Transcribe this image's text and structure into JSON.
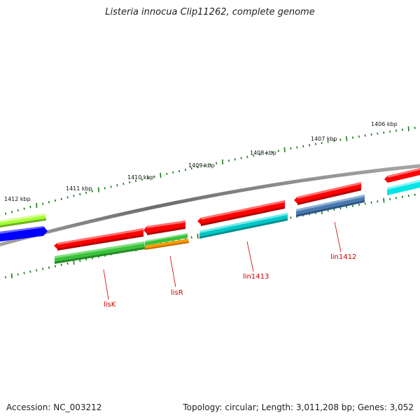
{
  "title": "Listeria innocua Clip11262, complete genome",
  "footer": {
    "accession": "Accession: NC_003212",
    "summary": "Topology: circular; Length: 3,011,208 bp; Genes: 3,052"
  },
  "map": {
    "ruler_color": "#1a7a1a",
    "backbone_color": "#808080",
    "ticks": [
      {
        "label": "1412 kbp"
      },
      {
        "label": "1411 kbp"
      },
      {
        "label": "1410 kbp"
      },
      {
        "label": "1409 kbp"
      },
      {
        "label": "1408 kbp"
      },
      {
        "label": "1407 kbp"
      },
      {
        "label": "1406 kbp"
      }
    ],
    "gene_labels": [
      {
        "label": "lisK"
      },
      {
        "label": "lisR"
      },
      {
        "label": "lin1413"
      },
      {
        "label": "lin1412"
      }
    ],
    "feature_colors": {
      "red": "#ff0000",
      "cyan": "#00e5e5",
      "green": "#3cc23c",
      "orange": "#ff9a00",
      "lime": "#a6ff33",
      "blue": "#0000ff",
      "steel_blue": "#4a79b0"
    }
  }
}
